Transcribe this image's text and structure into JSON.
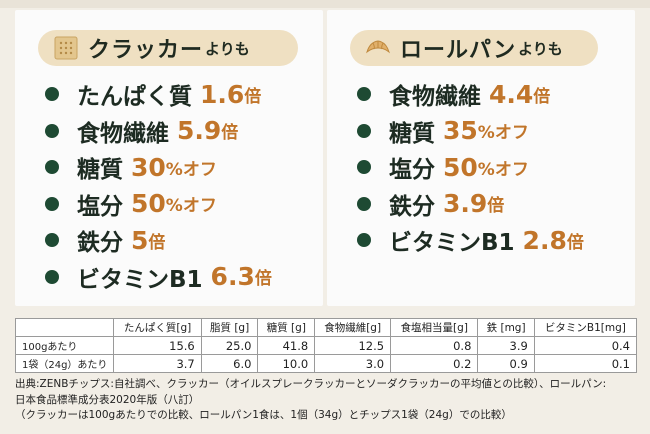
{
  "left_panel": {
    "header_big": "クラッカー",
    "header_small": "よりも",
    "items": [
      {
        "label": "たんぱく質",
        "value": "1.6",
        "unit": "倍"
      },
      {
        "label": "食物繊維",
        "value": "5.9",
        "unit": "倍"
      },
      {
        "label": "糖質",
        "value": "30",
        "unit": "%オフ"
      },
      {
        "label": "塩分",
        "value": "50",
        "unit": "%オフ"
      },
      {
        "label": "鉄分",
        "value": "5",
        "unit": "倍"
      },
      {
        "label": "ビタミンB1",
        "value": "6.3",
        "unit": "倍"
      }
    ]
  },
  "right_panel": {
    "header_big": "ロールパン",
    "header_small": "よりも",
    "items": [
      {
        "label": "食物繊維",
        "value": "4.4",
        "unit": "倍"
      },
      {
        "label": "糖質",
        "value": "35",
        "unit": "%オフ"
      },
      {
        "label": "塩分",
        "value": "50",
        "unit": "%オフ"
      },
      {
        "label": "鉄分",
        "value": "3.9",
        "unit": "倍"
      },
      {
        "label": "ビタミンB1",
        "value": "2.8",
        "unit": "倍"
      }
    ]
  },
  "table": {
    "headers": [
      "たんぱく質[g]",
      "脂質 [g]",
      "糖質 [g]",
      "食物繊維[g]",
      "食塩相当量[g]",
      "鉄 [mg]",
      "ビタミンB1[mg]"
    ],
    "rows": [
      {
        "label": "100gあたり",
        "values": [
          "15.6",
          "25.0",
          "41.8",
          "12.5",
          "0.8",
          "3.9",
          "0.4"
        ]
      },
      {
        "label": "1袋（24g）あたり",
        "values": [
          "3.7",
          "6.0",
          "10.0",
          "3.0",
          "0.2",
          "0.9",
          "0.1"
        ]
      }
    ]
  },
  "notes": {
    "line1": "出典:ZENBチップス:自社調べ、クラッカー（オイルスプレークラッカーとソーダクラッカーの平均値との比較）、ロールパン:",
    "line2": "日本食品標準成分表2020年版（八訂）",
    "line3": "（クラッカーは100gあたりでの比較、ロールパン1食は、1個（34g）とチップス1袋（24g）での比較）"
  },
  "colors": {
    "accent": "#c1752a",
    "dot": "#1e4a33",
    "pill": "#efe0c2"
  },
  "icons": {
    "left": "cracker-icon",
    "right": "croissant-icon"
  }
}
